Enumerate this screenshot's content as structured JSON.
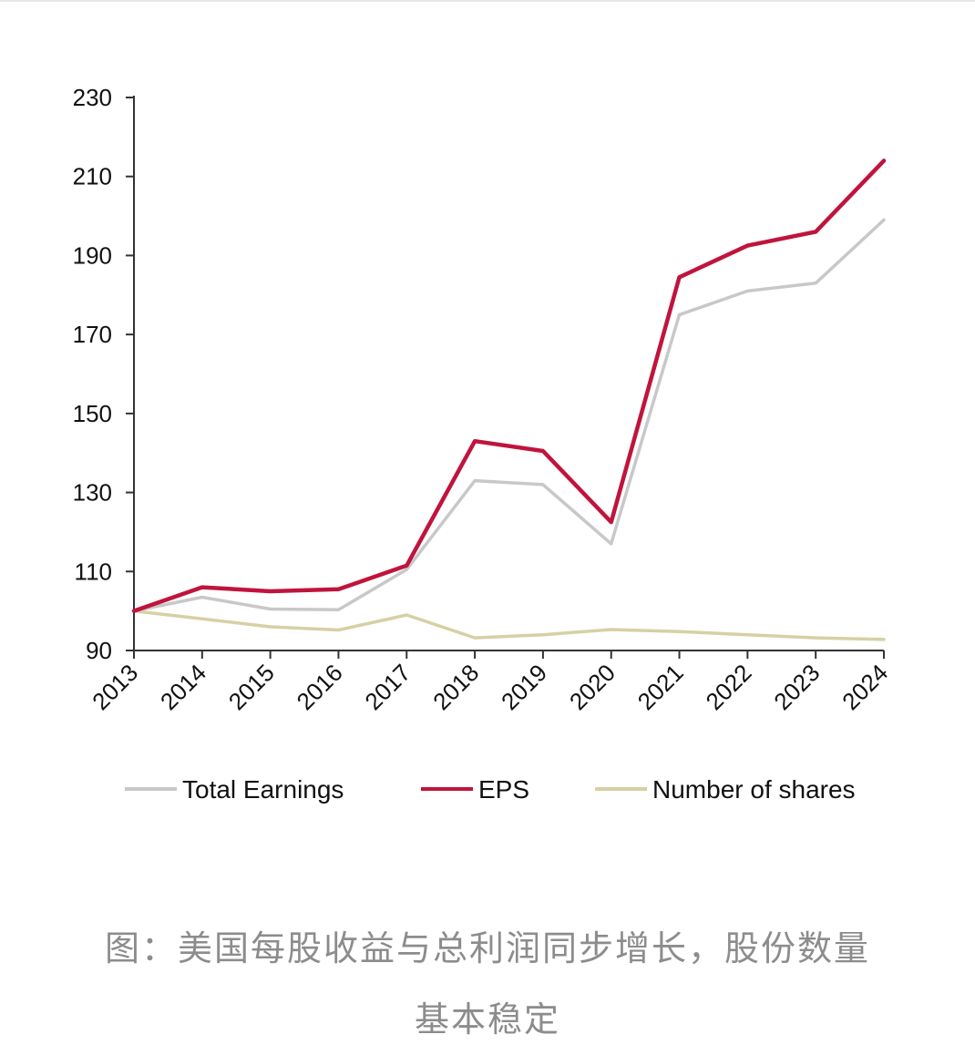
{
  "chart_data": {
    "type": "line",
    "x": [
      "2013",
      "2014",
      "2015",
      "2016",
      "2017",
      "2018",
      "2019",
      "2020",
      "2021",
      "2022",
      "2023",
      "2024"
    ],
    "series": [
      {
        "name": "Total Earnings",
        "color": "#c8c8c8",
        "values": [
          100,
          103.5,
          100.5,
          100.3,
          110.5,
          133,
          132,
          117,
          175,
          181,
          183,
          199
        ]
      },
      {
        "name": "EPS",
        "color": "#c0143c",
        "values": [
          100,
          106,
          105,
          105.5,
          111.5,
          143,
          140.5,
          122.5,
          184.5,
          192.5,
          196,
          214
        ]
      },
      {
        "name": "Number of shares",
        "color": "#d6d0a4",
        "values": [
          100,
          98,
          96,
          95.2,
          99,
          93.2,
          94,
          95.3,
          94.8,
          94,
          93.2,
          92.8
        ]
      }
    ],
    "ylim": [
      90,
      230
    ],
    "yticks": [
      90,
      110,
      130,
      150,
      170,
      190,
      210,
      230
    ],
    "grid": false,
    "legend": "bottom"
  },
  "caption": {
    "line1": "图：美国每股收益与总利润同步增长，股份数量",
    "line2": "基本稳定"
  }
}
